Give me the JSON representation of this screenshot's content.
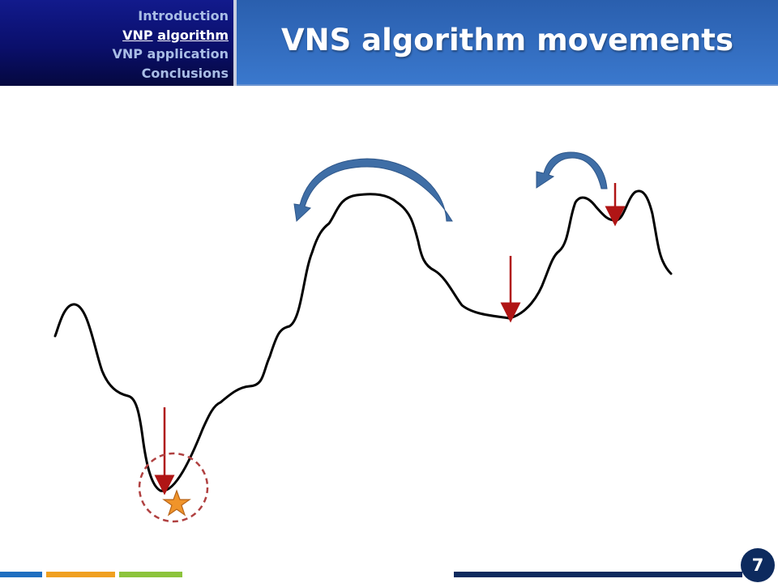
{
  "nav": {
    "items": [
      {
        "label": "Introduction",
        "active": false
      },
      {
        "label": "VNP",
        "label2": "algorithm",
        "active": true
      },
      {
        "label": "VNP application",
        "active": false
      },
      {
        "label": "Conclusions",
        "active": false
      }
    ]
  },
  "title": "VNS algorithm movements",
  "footer": {
    "page_number": "7",
    "colors": {
      "blue": "#1f6fc0",
      "orange": "#f0a020",
      "green": "#8cc43c",
      "navy": "#0d2a5e"
    }
  },
  "diagram": {
    "curve_color": "#000000",
    "drop_arrow_color": "#b01515",
    "jump_arrow_color": "#3f6ea6",
    "optimum_circle_color": "#b04040",
    "star_color": "#f0942a",
    "icons": [
      "drop-arrow",
      "curved-jump-arrow",
      "star-icon",
      "dashed-circle"
    ]
  }
}
